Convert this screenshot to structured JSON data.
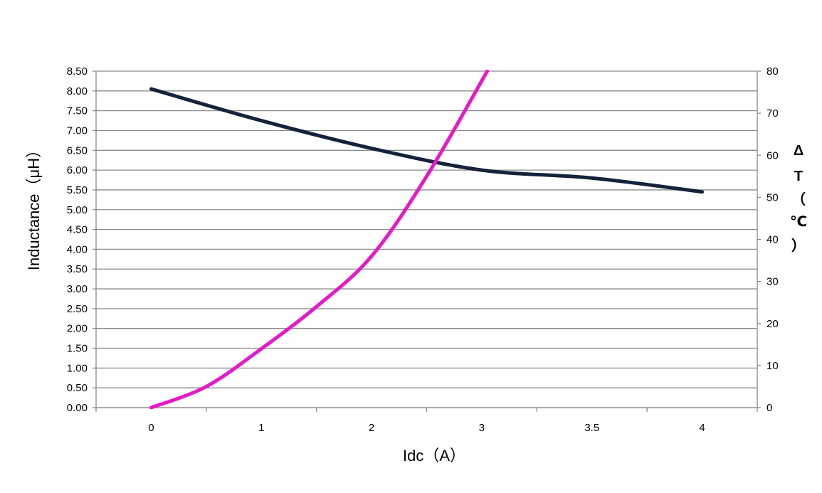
{
  "chart_data": {
    "type": "line",
    "title": "",
    "xlabel": "Idc（A）",
    "ylabel": "Inductance（μH）",
    "y2label": [
      "Δ",
      "T",
      "（",
      "℃",
      "）"
    ],
    "categories": [
      "0",
      "1",
      "2",
      "3",
      "3.5",
      "4"
    ],
    "ylim": [
      0,
      8.5
    ],
    "y_ticks": [
      "0.00",
      "0.50",
      "1.00",
      "1.50",
      "2.00",
      "2.50",
      "3.00",
      "3.50",
      "4.00",
      "4.50",
      "5.00",
      "5.50",
      "6.00",
      "6.50",
      "7.00",
      "7.50",
      "8.00",
      "8.50"
    ],
    "y2lim": [
      0,
      80
    ],
    "y2_ticks": [
      "0",
      "10",
      "20",
      "30",
      "40",
      "50",
      "60",
      "70",
      "80"
    ],
    "grid": true,
    "legend": "none",
    "series": [
      {
        "axis": "left",
        "color": "#14233a",
        "points": [
          [
            0,
            8.05
          ],
          [
            1,
            7.25
          ],
          [
            2,
            6.55
          ],
          [
            3,
            6.0
          ],
          [
            4,
            5.8
          ],
          [
            5,
            5.45
          ]
        ]
      },
      {
        "axis": "right",
        "color": "#e619c8",
        "points": [
          [
            0,
            0
          ],
          [
            0.5,
            5
          ],
          [
            1,
            14
          ],
          [
            1.5,
            24
          ],
          [
            2,
            36
          ],
          [
            2.5,
            55
          ],
          [
            3.05,
            80
          ]
        ]
      }
    ]
  }
}
